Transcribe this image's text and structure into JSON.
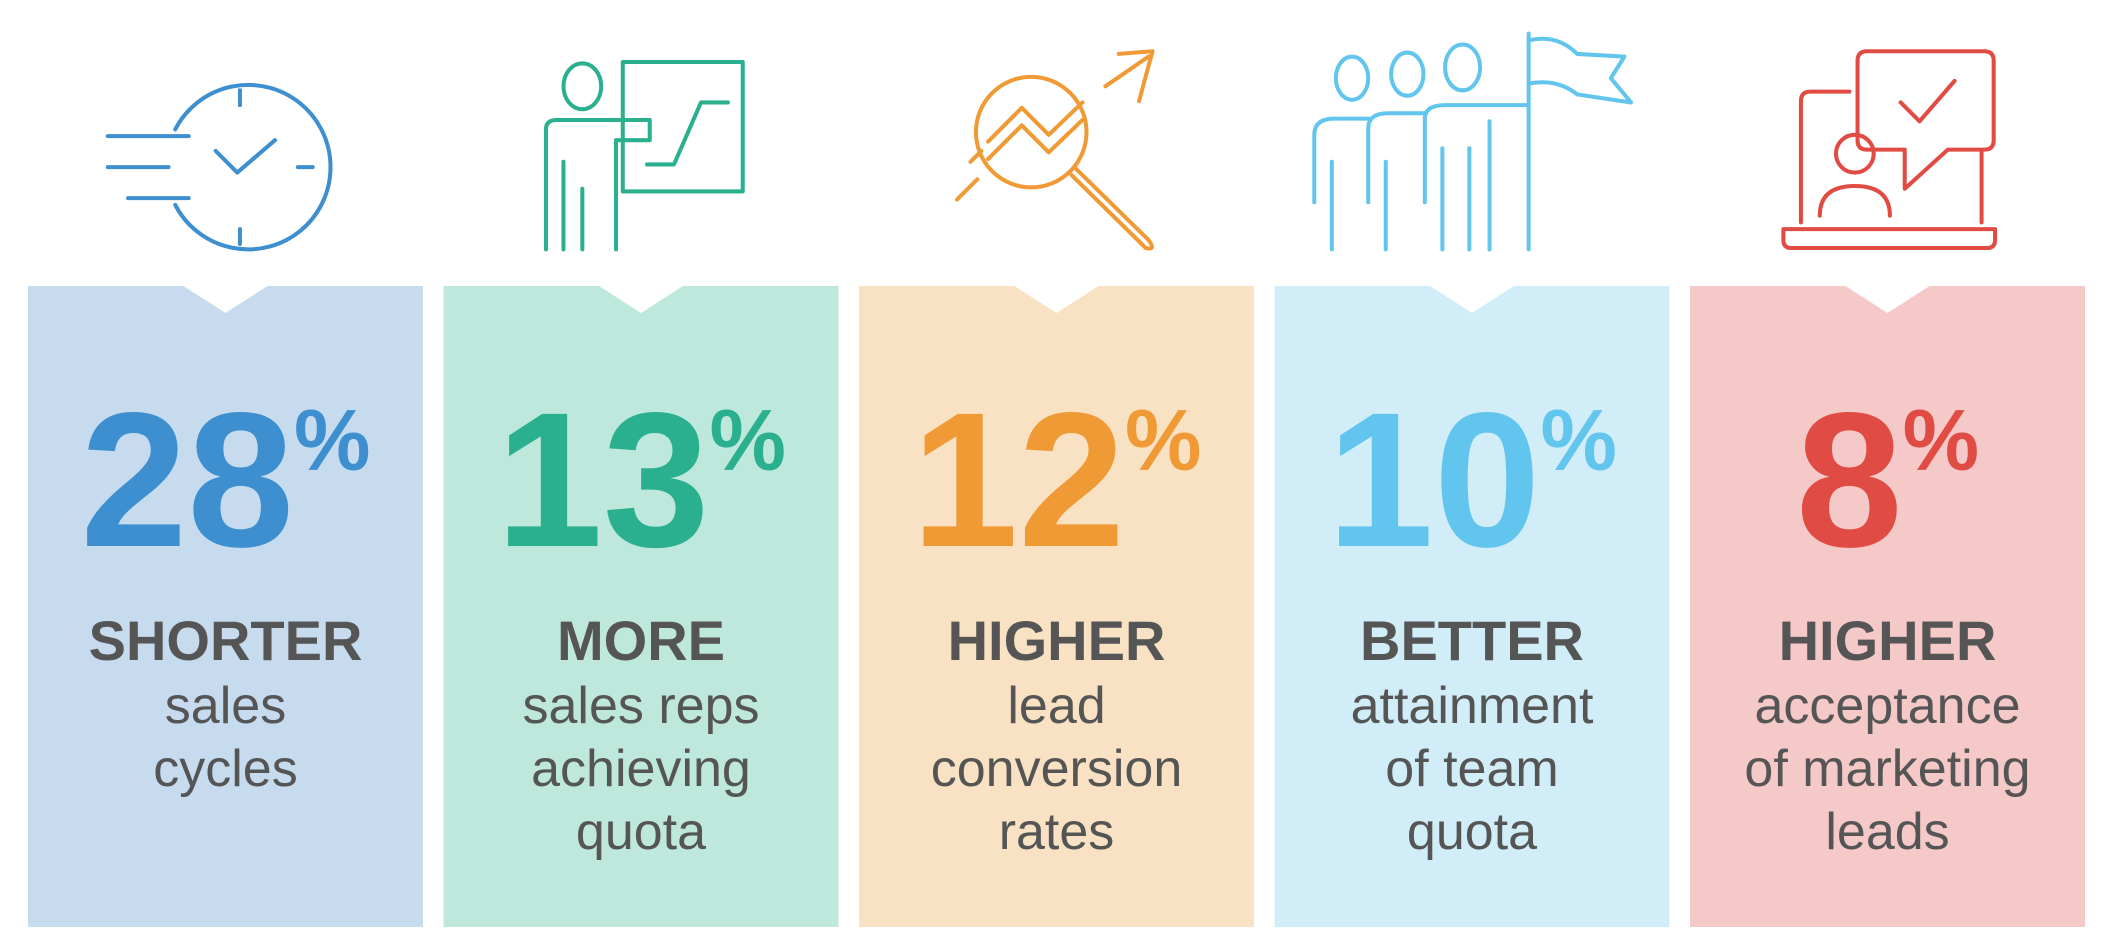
{
  "cards": [
    {
      "value": 28,
      "unit": "%",
      "heading": "SHORTER",
      "lines": [
        "sales",
        "cycles"
      ]
    },
    {
      "value": 13,
      "unit": "%",
      "heading": "MORE",
      "lines": [
        "sales reps",
        "achieving",
        "quota"
      ]
    },
    {
      "value": 12,
      "unit": "%",
      "heading": "HIGHER",
      "lines": [
        "lead",
        "conversion",
        "rates"
      ]
    },
    {
      "value": 10,
      "unit": "%",
      "heading": "BETTER",
      "lines": [
        "attainment",
        "of team",
        "quota"
      ]
    },
    {
      "value": 8,
      "unit": "%",
      "heading": "HIGHER",
      "lines": [
        "acceptance",
        "of marketing",
        "leads"
      ]
    }
  ]
}
